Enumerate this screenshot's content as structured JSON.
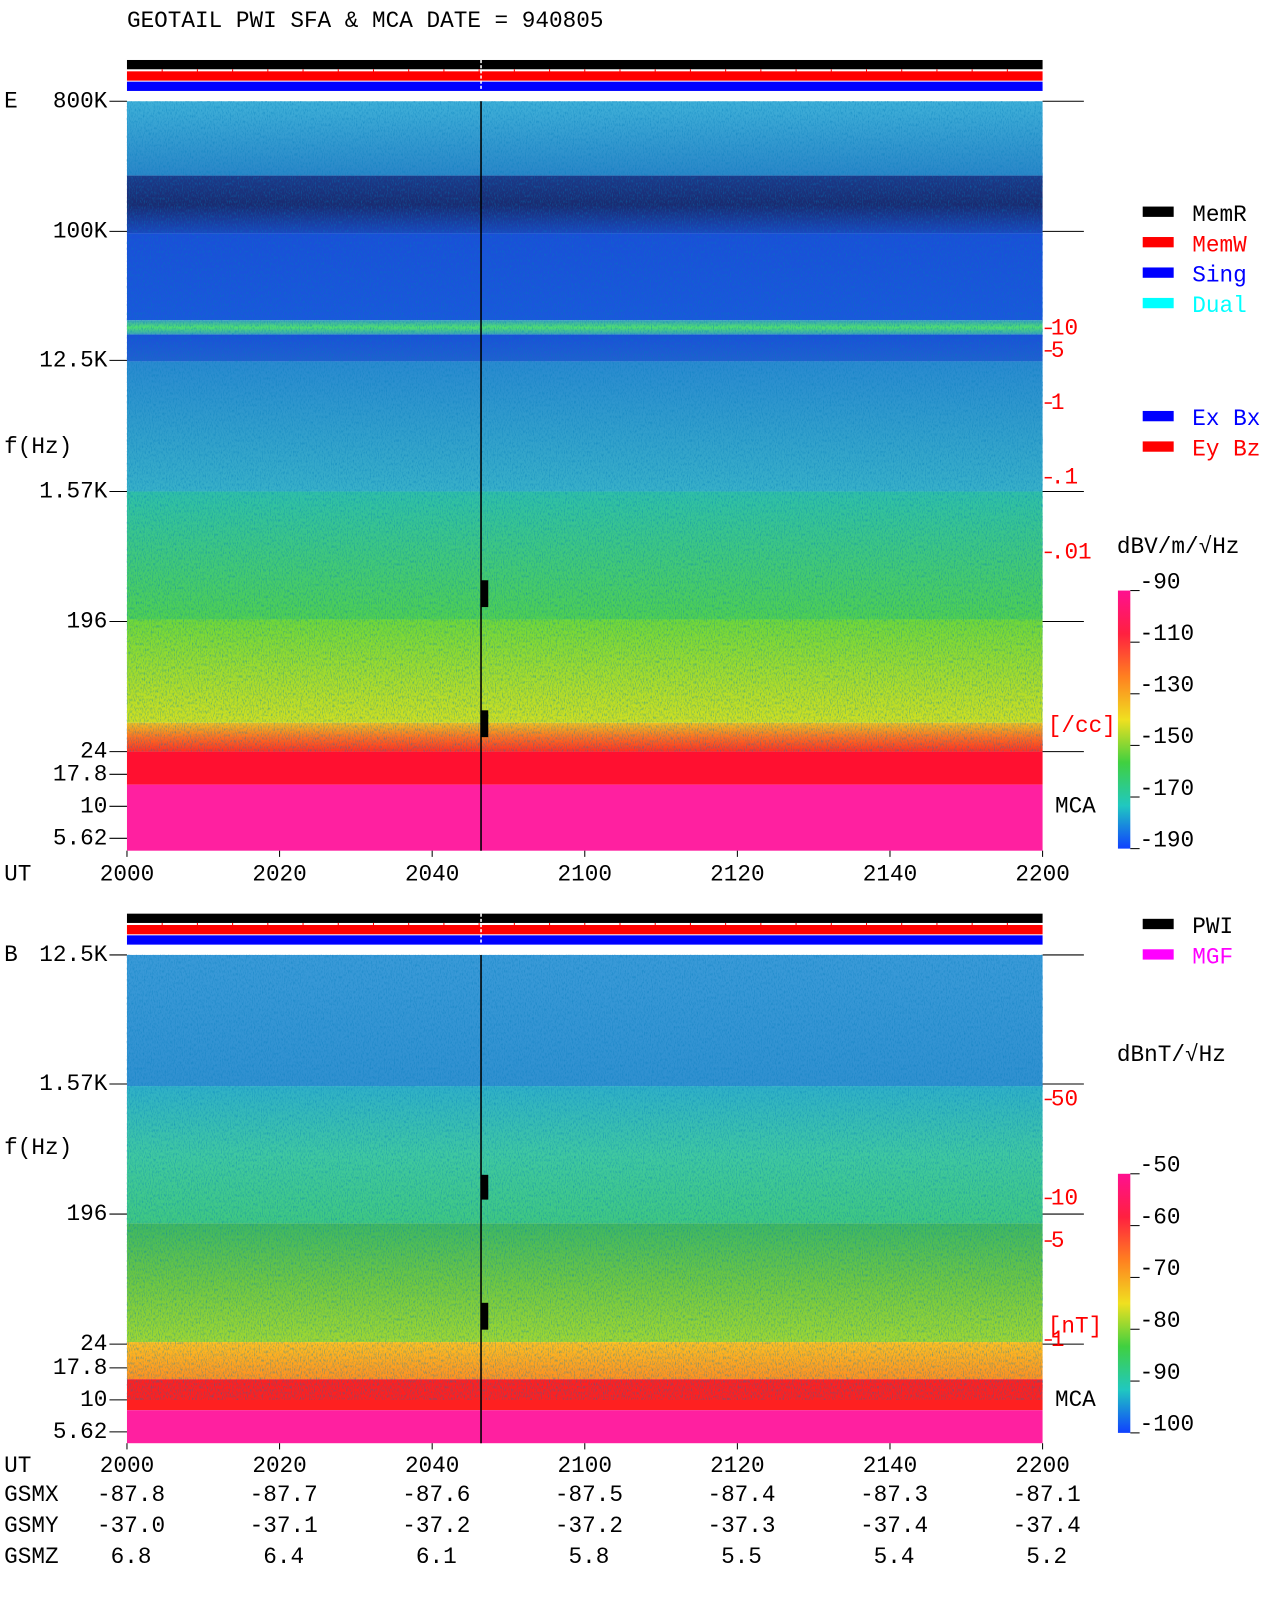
{
  "title": "GEOTAIL  PWI SFA & MCA   DATE = 940805",
  "status_legend": [
    {
      "name": "MemR",
      "color": "#000000"
    },
    {
      "name": "MemW",
      "color": "#ff0000"
    },
    {
      "name": "Sing",
      "color": "#0000ff"
    },
    {
      "name": "Dual",
      "color": "#00ffff"
    }
  ],
  "component_legend": [
    {
      "name": "Ex Bx",
      "color": "#0000ff"
    },
    {
      "name": "Ey Bz",
      "color": "#ff0000"
    }
  ],
  "instrument_legend": [
    {
      "name": "PWI",
      "color": "#000000"
    },
    {
      "name": "MGF",
      "color": "#ff00ff"
    }
  ],
  "panels": [
    {
      "component": "E",
      "y_label": "f(Hz)",
      "frequency_ticks": [
        "800K",
        "100K",
        "12.5K",
        "1.57K",
        "196",
        "24",
        "17.8",
        "10",
        "5.62"
      ],
      "density_ticks": [
        10,
        5,
        1,
        {
          "value": 0.1,
          "label": ".1"
        },
        {
          "value": 0.01,
          "label": ".01"
        }
      ],
      "density_lim": [
        0.01,
        10
      ],
      "density_unit": "[/cc]",
      "mca_label": "MCA",
      "colorbar_title": "dBV/m/√Hz",
      "colorbar_lim": [
        -190,
        -90
      ],
      "colorbar_ticks": [
        -90,
        -110,
        -130,
        -150,
        -170,
        -190
      ],
      "x_label": "UT",
      "x_ticks": [
        "2000",
        "2020",
        "2040",
        "2100",
        "2120",
        "2140",
        "2200"
      ]
    },
    {
      "component": "B",
      "y_label": "f(Hz)",
      "frequency_ticks": [
        "12.5K",
        "1.57K",
        "196",
        "24",
        "17.8",
        "10",
        "5.62"
      ],
      "density_ticks": [
        50,
        10,
        5,
        1
      ],
      "density_lim": [
        1,
        50
      ],
      "density_unit": "[nT]",
      "mca_label": "MCA",
      "colorbar_title": "dBnT/√Hz",
      "colorbar_lim": [
        -100,
        -50
      ],
      "colorbar_ticks": [
        -50,
        -60,
        -70,
        -80,
        -90,
        -100
      ],
      "x_label": "UT",
      "x_ticks": [
        "2000",
        "2020",
        "2040",
        "2100",
        "2120",
        "2140",
        "2200"
      ]
    }
  ],
  "orbit": [
    {
      "label": "GSMX",
      "values": [
        "-87.8",
        "-87.7",
        "-87.6",
        "-87.5",
        "-87.4",
        "-87.3",
        "-87.1"
      ]
    },
    {
      "label": "GSMY",
      "values": [
        "-37.0",
        "-37.1",
        "-37.2",
        "-37.2",
        "-37.3",
        "-37.4",
        "-37.4"
      ]
    },
    {
      "label": "GSMZ",
      "values": [
        "6.8",
        "6.4",
        "6.1",
        "5.8",
        "5.5",
        "5.4",
        "5.2"
      ]
    }
  ]
}
